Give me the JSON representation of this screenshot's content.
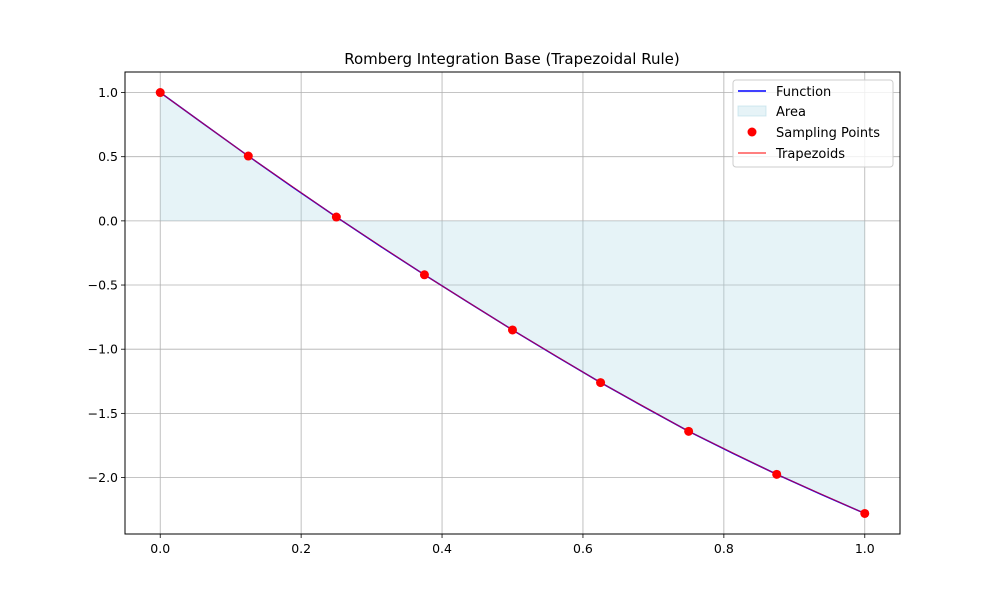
{
  "chart_data": {
    "type": "line",
    "title": "Romberg Integration Base (Trapezoidal Rule)",
    "xlabel": "",
    "ylabel": "",
    "xlim": [
      -0.05,
      1.05
    ],
    "ylim": [
      -2.44,
      1.16
    ],
    "grid": true,
    "legend": {
      "position": "top-right",
      "entries": [
        "Function",
        "Area",
        "Sampling Points",
        "Trapezoids"
      ]
    },
    "x_ticks": [
      0.0,
      0.2,
      0.4,
      0.6,
      0.8,
      1.0
    ],
    "x_tick_labels": [
      "0.0",
      "0.2",
      "0.4",
      "0.6",
      "0.8",
      "1.0"
    ],
    "y_ticks": [
      1.0,
      0.5,
      0.0,
      -0.5,
      -1.0,
      -1.5,
      -2.0
    ],
    "y_tick_labels": [
      "1.0",
      "0.5",
      "0.0",
      "−0.5",
      "−1.0",
      "−1.5",
      "−2.0"
    ],
    "series": [
      {
        "name": "Function",
        "kind": "line",
        "color": "#0000ff",
        "x": [
          0,
          0.0625,
          0.125,
          0.1875,
          0.25,
          0.3125,
          0.375,
          0.4375,
          0.5,
          0.5625,
          0.625,
          0.6875,
          0.75,
          0.8125,
          0.875,
          0.9375,
          1.0
        ],
        "y": [
          1.0,
          0.752,
          0.505,
          0.265,
          0.03,
          -0.198,
          -0.42,
          -0.636,
          -0.85,
          -1.057,
          -1.26,
          -1.452,
          -1.64,
          -1.81,
          -1.975,
          -2.13,
          -2.28
        ]
      },
      {
        "name": "Area",
        "kind": "area",
        "color": "#add8e6"
      },
      {
        "name": "Sampling Points",
        "kind": "scatter",
        "color": "#ff0000",
        "x": [
          0.0,
          0.125,
          0.25,
          0.375,
          0.5,
          0.625,
          0.75,
          0.875,
          1.0
        ],
        "y": [
          1.0,
          0.505,
          0.03,
          -0.42,
          -0.85,
          -1.26,
          -1.64,
          -1.975,
          -2.28
        ]
      },
      {
        "name": "Trapezoids",
        "kind": "line",
        "color": "#ff0000"
      }
    ]
  }
}
